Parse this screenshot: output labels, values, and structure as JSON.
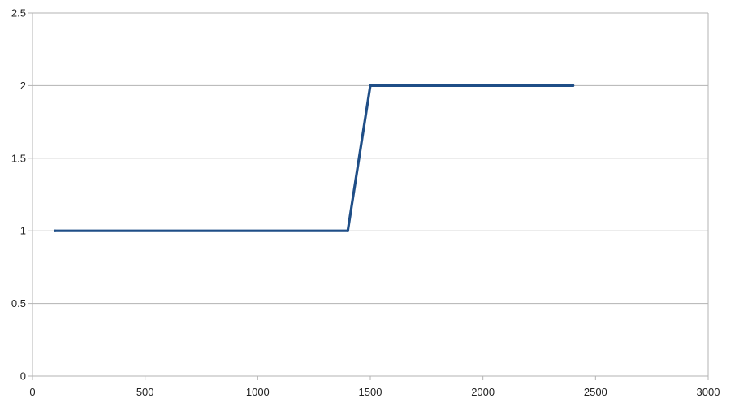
{
  "chart_data": {
    "type": "line",
    "title": "",
    "xlabel": "",
    "ylabel": "",
    "xlim": [
      0,
      3000
    ],
    "ylim": [
      0,
      2.5
    ],
    "x_ticks": [
      0,
      500,
      1000,
      1500,
      2000,
      2500,
      3000
    ],
    "x_tick_labels": [
      "0",
      "500",
      "1000",
      "1500",
      "2000",
      "2500",
      "3000"
    ],
    "y_ticks": [
      0,
      0.5,
      1,
      1.5,
      2,
      2.5
    ],
    "y_tick_labels": [
      "0",
      "0.5",
      "1",
      "1.5",
      "2",
      "2.5"
    ],
    "grid": "horizontal",
    "legend": "none",
    "series": [
      {
        "color": "#1f4e87",
        "points": [
          {
            "x": 100,
            "y": 1
          },
          {
            "x": 1400,
            "y": 1
          },
          {
            "x": 1500,
            "y": 2
          },
          {
            "x": 2400,
            "y": 2
          }
        ]
      }
    ]
  }
}
